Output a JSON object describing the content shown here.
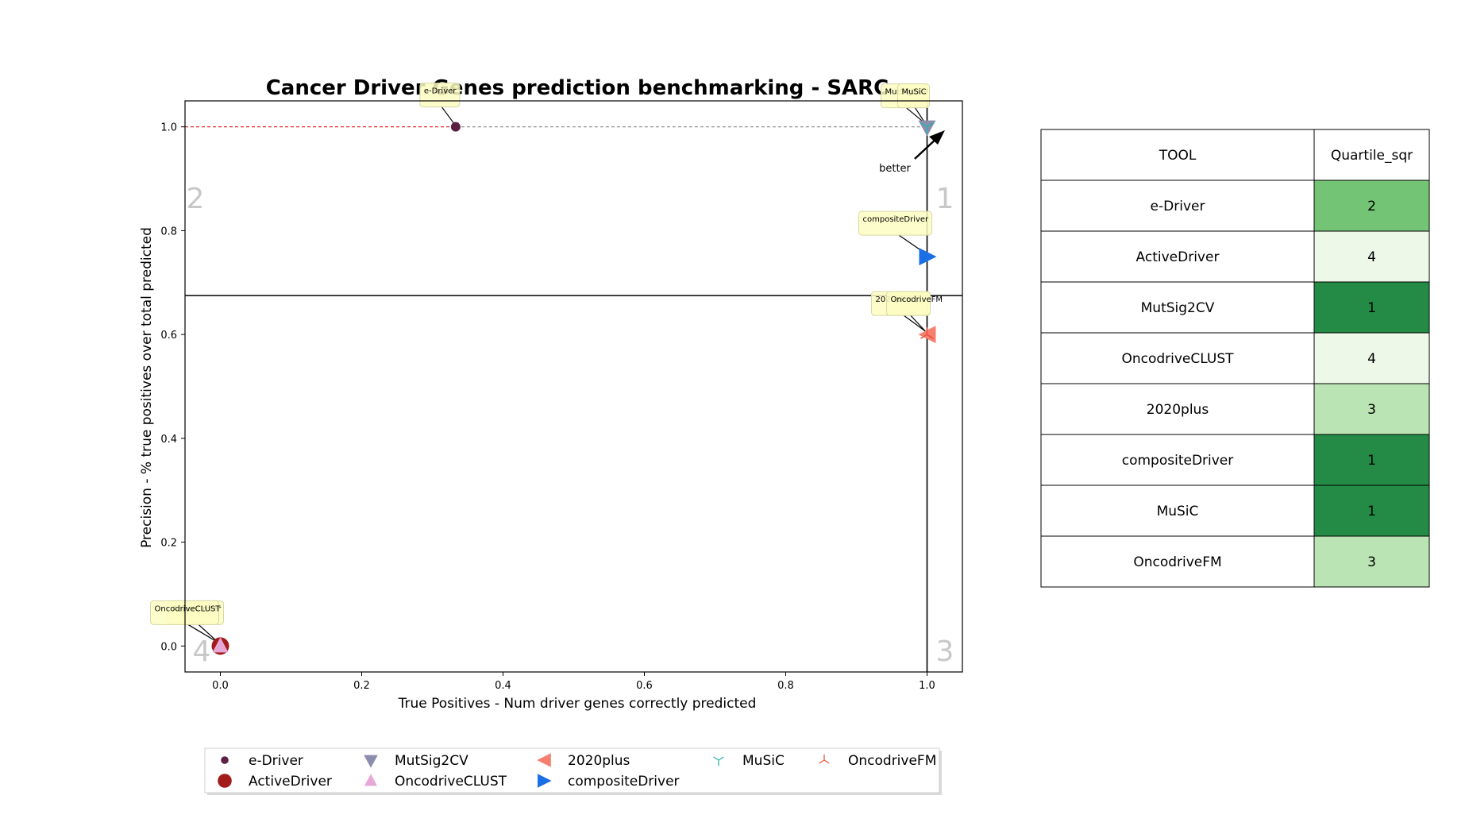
{
  "chart_data": {
    "type": "scatter",
    "title": "Cancer Driver Genes prediction benchmarking - SARC",
    "xlabel": "True Positives - Num driver genes correctly predicted",
    "ylabel": "Precision - % true positives over total predicted",
    "xlim": [
      -0.05,
      1.05
    ],
    "ylim": [
      -0.05,
      1.05
    ],
    "xticks": [
      "0.0",
      "0.2",
      "0.4",
      "0.6",
      "0.8",
      "1.0"
    ],
    "yticks": [
      "0.0",
      "0.2",
      "0.4",
      "0.6",
      "0.8",
      "1.0"
    ],
    "points": [
      {
        "name": "e-Driver",
        "x": 0.333,
        "y": 1.0,
        "color": "#5a2142",
        "marker": "circle"
      },
      {
        "name": "ActiveDriver",
        "x": 0.0,
        "y": 0.0,
        "color": "#a31c1c",
        "marker": "circle-large"
      },
      {
        "name": "MutSig2CV",
        "x": 1.0,
        "y": 1.0,
        "color": "#8c8cae",
        "marker": "triangle-down"
      },
      {
        "name": "OncodriveCLUST",
        "x": 0.0,
        "y": 0.0,
        "color": "#e6a8d6",
        "marker": "triangle-up"
      },
      {
        "name": "2020plus",
        "x": 1.0,
        "y": 0.6,
        "color": "#f77f6f",
        "marker": "triangle-left"
      },
      {
        "name": "compositeDriver",
        "x": 1.0,
        "y": 0.75,
        "color": "#1b6fe6",
        "marker": "triangle-right"
      },
      {
        "name": "MuSiC",
        "x": 1.0,
        "y": 1.0,
        "color": "#2bb5a8",
        "marker": "tri-down"
      },
      {
        "name": "OncodriveFM",
        "x": 1.0,
        "y": 0.6,
        "color": "#e8553a",
        "marker": "tri-up"
      }
    ],
    "quartile_lines": {
      "x": 1.0,
      "y": 0.675
    },
    "quadrant_numbers": [
      "2",
      "1",
      "4",
      "3"
    ],
    "better_label": "better",
    "legend_placement": "bottom"
  },
  "table": {
    "headers": [
      "TOOL",
      "Quartile_sqr"
    ],
    "rows": [
      {
        "tool": "e-Driver",
        "quartile": "2",
        "color": "#74c476"
      },
      {
        "tool": "ActiveDriver",
        "quartile": "4",
        "color": "#edf8e9"
      },
      {
        "tool": "MutSig2CV",
        "quartile": "1",
        "color": "#238b45"
      },
      {
        "tool": "OncodriveCLUST",
        "quartile": "4",
        "color": "#edf8e9"
      },
      {
        "tool": "2020plus",
        "quartile": "3",
        "color": "#bae4b3"
      },
      {
        "tool": "compositeDriver",
        "quartile": "1",
        "color": "#238b45"
      },
      {
        "tool": "MuSiC",
        "quartile": "1",
        "color": "#238b45"
      },
      {
        "tool": "OncodriveFM",
        "quartile": "3",
        "color": "#bae4b3"
      }
    ]
  }
}
